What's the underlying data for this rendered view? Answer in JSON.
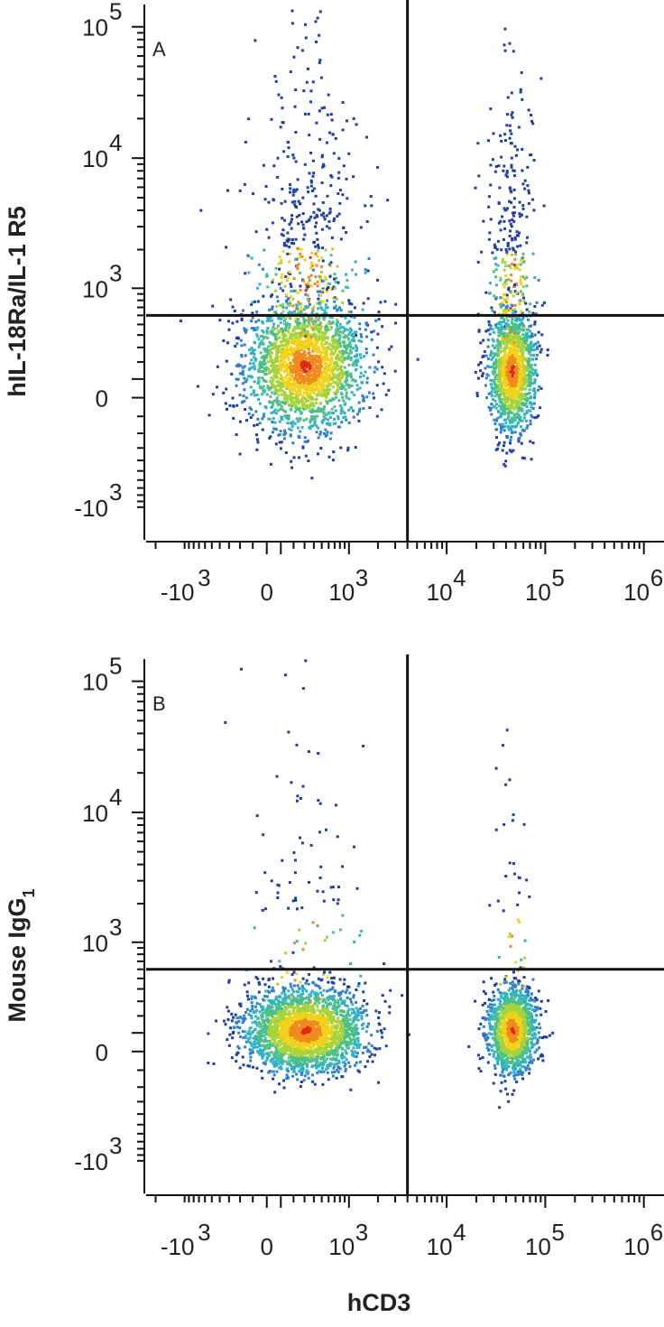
{
  "chart_data": [
    {
      "type": "scatter",
      "panel_label": "A",
      "ylabel": "hIL-18Ra/IL-1 R5",
      "xlabel": "",
      "x_scale": "biexponential",
      "y_scale": "biexponential",
      "x_ticks": [
        {
          "base": "-10",
          "exp": "3"
        },
        {
          "base": "0",
          "exp": ""
        },
        {
          "base": "10",
          "exp": "3"
        },
        {
          "base": "10",
          "exp": "4"
        },
        {
          "base": "10",
          "exp": "5"
        },
        {
          "base": "10",
          "exp": "6"
        }
      ],
      "y_ticks": [
        {
          "base": "10",
          "exp": "5"
        },
        {
          "base": "10",
          "exp": "4"
        },
        {
          "base": "10",
          "exp": "3"
        },
        {
          "base": "0",
          "exp": ""
        },
        {
          "base": "-10",
          "exp": "3"
        }
      ],
      "quadrant_gate": {
        "x": 4000,
        "y": 600
      },
      "grid": false,
      "populations": [
        {
          "name": "",
          "center_x": 300,
          "center_y": 180,
          "count": 2600,
          "spread_x": 0.55,
          "spread_y": 0.55,
          "tail_up": 0.18
        },
        {
          "name": "",
          "center_x": 45000,
          "center_y": 150,
          "count": 1600,
          "spread_x": 0.22,
          "spread_y": 0.5,
          "tail_up": 0.2
        }
      ],
      "colormap": [
        "#1f3ea8",
        "#2f7fd1",
        "#2fb3c4",
        "#4cc08a",
        "#a7d33a",
        "#f1d21b",
        "#f08a1c",
        "#e0261a"
      ]
    },
    {
      "type": "scatter",
      "panel_label": "B",
      "ylabel": "Mouse IgG",
      "ylabel_sub": "1",
      "xlabel": "hCD3",
      "x_scale": "biexponential",
      "y_scale": "biexponential",
      "x_ticks": [
        {
          "base": "-10",
          "exp": "3"
        },
        {
          "base": "0",
          "exp": ""
        },
        {
          "base": "10",
          "exp": "3"
        },
        {
          "base": "10",
          "exp": "4"
        },
        {
          "base": "10",
          "exp": "5"
        },
        {
          "base": "10",
          "exp": "6"
        }
      ],
      "y_ticks": [
        {
          "base": "10",
          "exp": "5"
        },
        {
          "base": "10",
          "exp": "4"
        },
        {
          "base": "10",
          "exp": "3"
        },
        {
          "base": "0",
          "exp": ""
        },
        {
          "base": "-10",
          "exp": "3"
        }
      ],
      "quadrant_gate": {
        "x": 4000,
        "y": 600
      },
      "grid": false,
      "populations": [
        {
          "name": "",
          "center_x": 300,
          "center_y": 120,
          "count": 2600,
          "spread_x": 0.55,
          "spread_y": 0.35,
          "tail_up": 0.04
        },
        {
          "name": "",
          "center_x": 45000,
          "center_y": 120,
          "count": 1500,
          "spread_x": 0.22,
          "spread_y": 0.35,
          "tail_up": 0.03
        }
      ],
      "colormap": [
        "#1f3ea8",
        "#2f7fd1",
        "#2fb3c4",
        "#4cc08a",
        "#a7d33a",
        "#f1d21b",
        "#f08a1c",
        "#e0261a"
      ]
    }
  ]
}
